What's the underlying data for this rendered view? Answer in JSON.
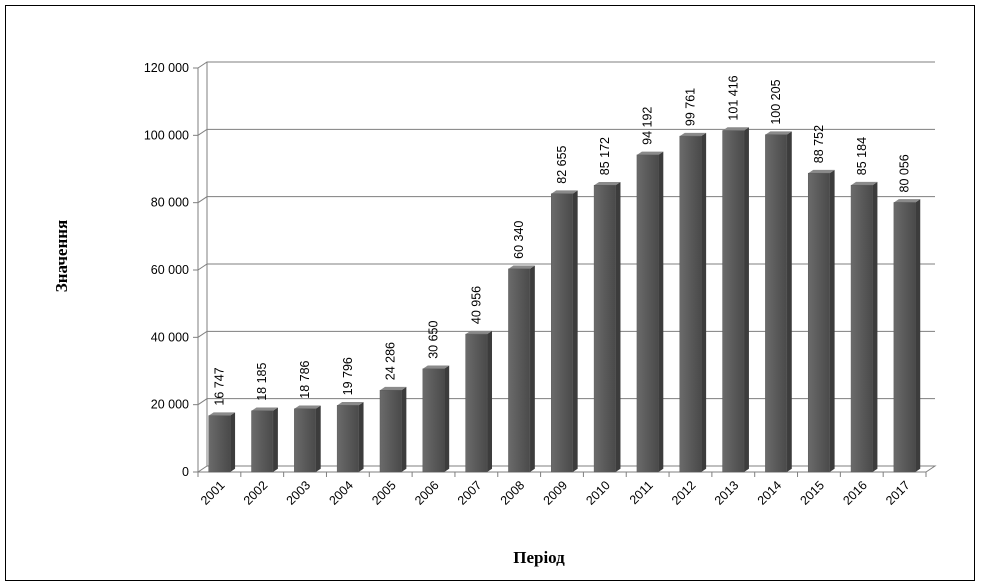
{
  "chart_data": {
    "type": "bar",
    "title": "",
    "xlabel": "Період",
    "ylabel": "Значення",
    "categories": [
      "2001",
      "2002",
      "2003",
      "2004",
      "2005",
      "2006",
      "2007",
      "2008",
      "2009",
      "2010",
      "2011",
      "2012",
      "2013",
      "2014",
      "2015",
      "2016",
      "2017"
    ],
    "values": [
      16747,
      18185,
      18786,
      19796,
      24286,
      30650,
      40956,
      60340,
      82655,
      85172,
      94192,
      99761,
      101416,
      100205,
      88752,
      85184,
      80056
    ],
    "value_labels": [
      "16 747",
      "18 185",
      "18 786",
      "19 796",
      "24 286",
      "30 650",
      "40 956",
      "60 340",
      "82 655",
      "85 172",
      "94 192",
      "99 761",
      "101 416",
      "100 205",
      "88 752",
      "85 184",
      "80 056"
    ],
    "yticks": [
      0,
      20000,
      40000,
      60000,
      80000,
      100000,
      120000
    ],
    "ytick_labels": [
      "0",
      "20 000",
      "40 000",
      "60 000",
      "80 000",
      "100 000",
      "120 000"
    ],
    "ylim": [
      0,
      120000
    ],
    "grid": true,
    "legend": "none",
    "bar_color": "#595959",
    "grid_color": "#7f7f7f"
  }
}
